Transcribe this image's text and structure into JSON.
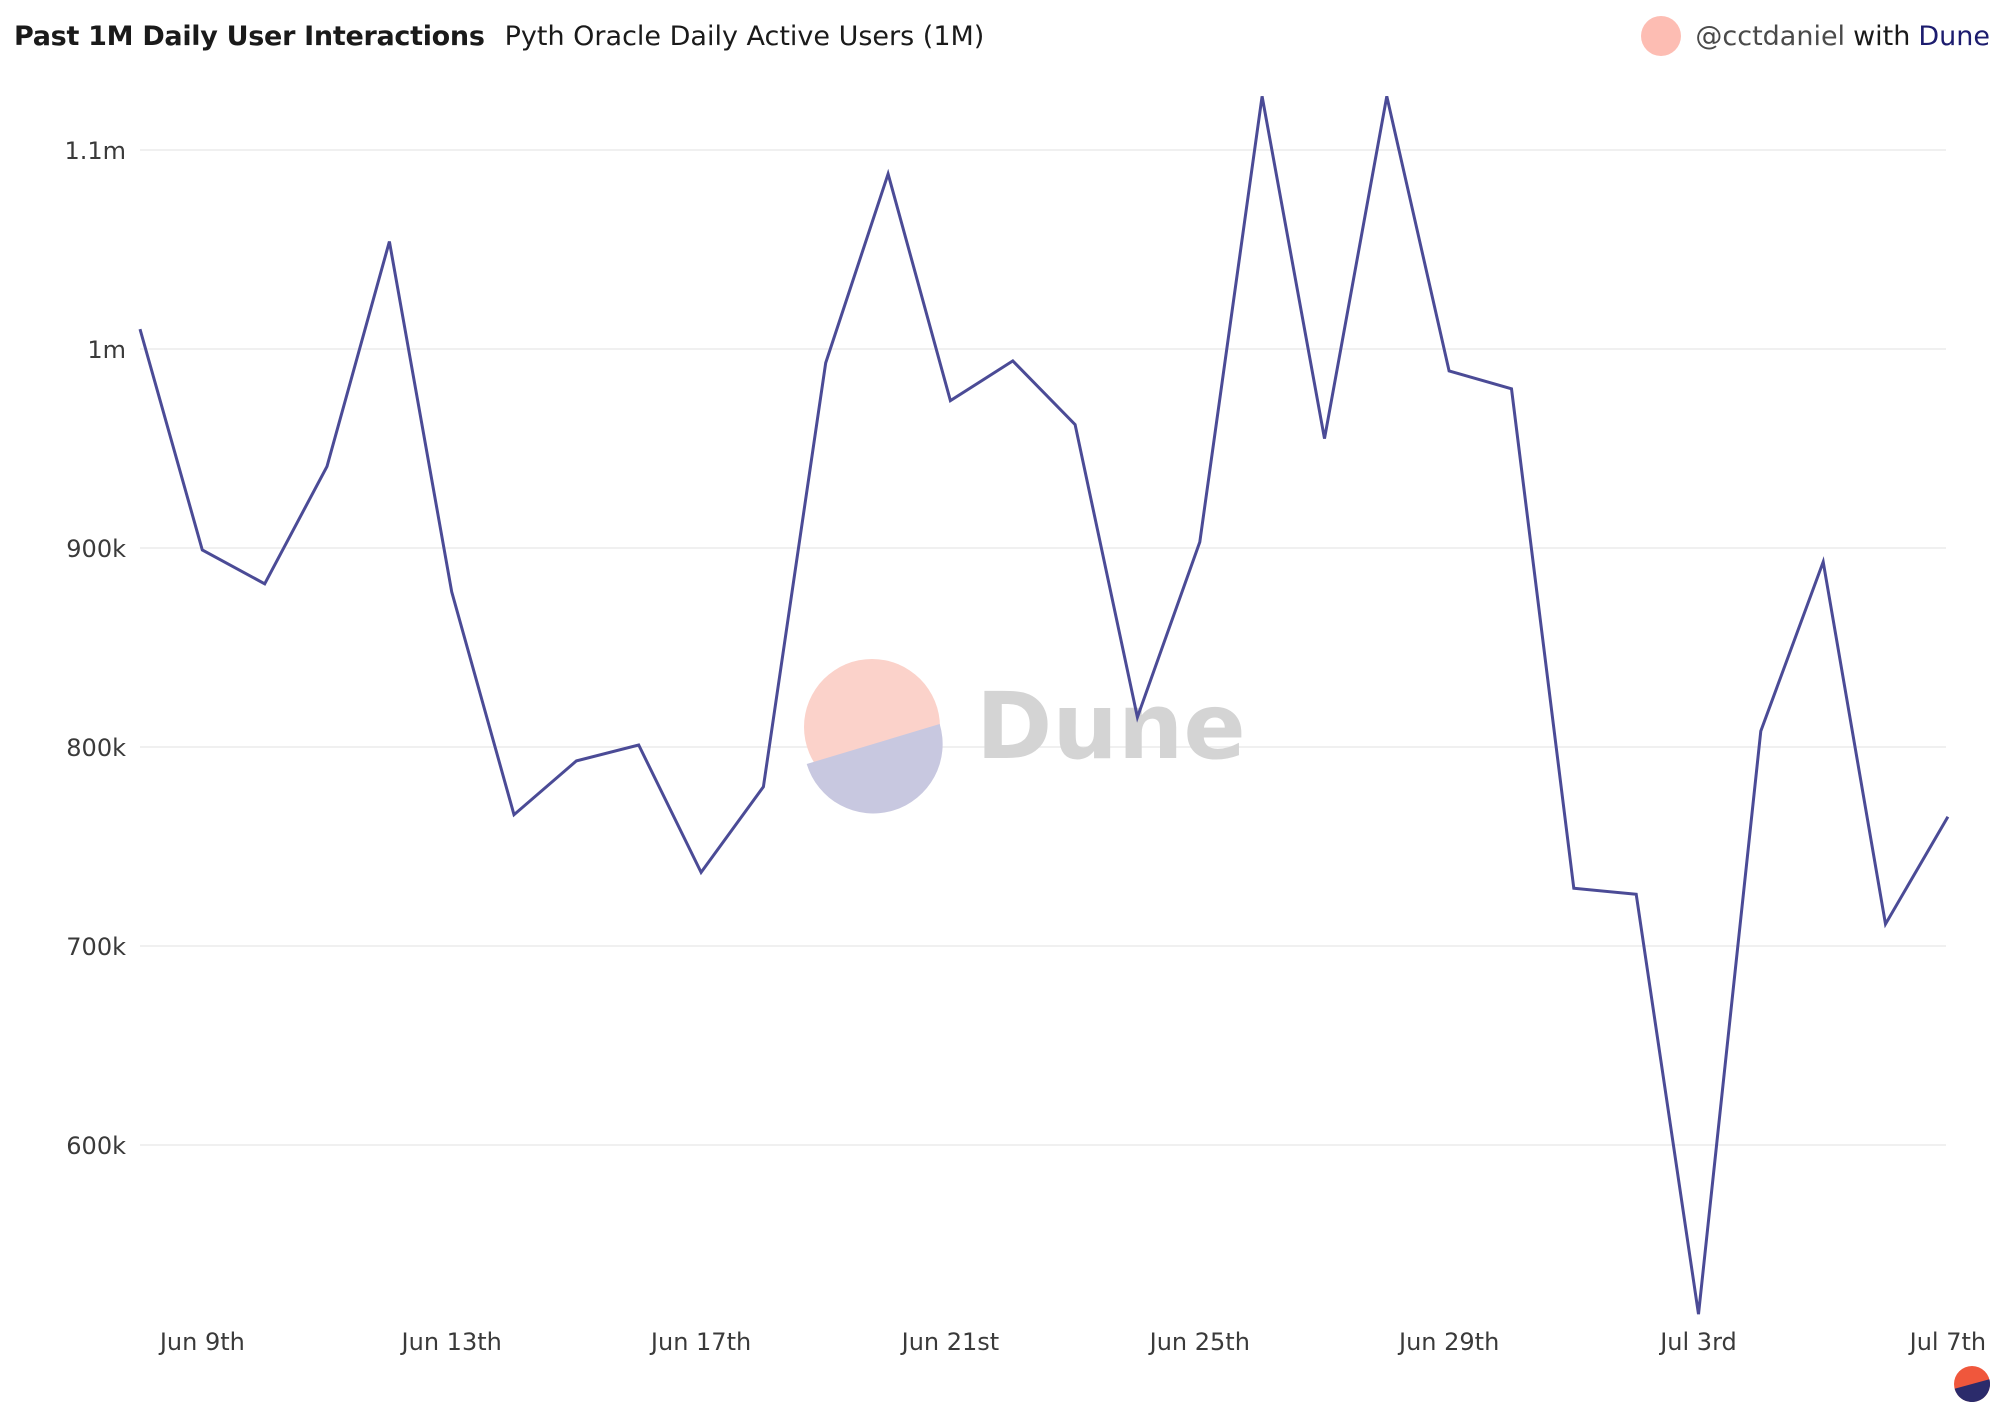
{
  "header": {
    "title": "Past 1M Daily User Interactions",
    "subtitle": "Pyth Oracle Daily Active Users (1M)"
  },
  "attribution": {
    "user": "@cctdaniel",
    "with": "with",
    "brand": "Dune",
    "avatar_color": "#fdbdb3"
  },
  "watermark": {
    "text": "Dune",
    "top_color": "#fbd2ca",
    "bottom_color": "#c8c8e0"
  },
  "colors": {
    "line": "#4b4b96",
    "grid": "#ebebeb",
    "axis_text": "#3a3a3a",
    "logo_top": "#f0573c",
    "logo_bottom": "#2b2b6b"
  },
  "chart_data": {
    "type": "line",
    "title": "Pyth Oracle Daily Active Users (1M)",
    "xlabel": "",
    "ylabel": "",
    "x": [
      "Jun 8th",
      "Jun 9th",
      "Jun 10th",
      "Jun 11th",
      "Jun 12th",
      "Jun 13th",
      "Jun 14th",
      "Jun 15th",
      "Jun 16th",
      "Jun 17th",
      "Jun 18th",
      "Jun 19th",
      "Jun 20th",
      "Jun 21st",
      "Jun 22nd",
      "Jun 23rd",
      "Jun 24th",
      "Jun 25th",
      "Jun 26th",
      "Jun 27th",
      "Jun 28th",
      "Jun 29th",
      "Jun 30th",
      "Jul 1st",
      "Jul 2nd",
      "Jul 3rd",
      "Jul 4th",
      "Jul 5th",
      "Jul 6th",
      "Jul 7th"
    ],
    "series": [
      {
        "values": [
          1010000,
          899000,
          882000,
          941000,
          1054000,
          878000,
          766000,
          793000,
          801000,
          737000,
          780000,
          993000,
          1088000,
          974000,
          994000,
          962000,
          815000,
          903000,
          1127000,
          955000,
          1127000,
          989000,
          980000,
          729000,
          726000,
          515000,
          808000,
          893000,
          711000,
          765000
        ]
      }
    ],
    "x_ticks": [
      "Jun 9th",
      "Jun 13th",
      "Jun 17th",
      "Jun 21st",
      "Jun 25th",
      "Jun 29th",
      "Jul 3rd",
      "Jul 7th"
    ],
    "y_ticks": [
      {
        "value": 600000,
        "label": "600k"
      },
      {
        "value": 700000,
        "label": "700k"
      },
      {
        "value": 800000,
        "label": "800k"
      },
      {
        "value": 900000,
        "label": "900k"
      },
      {
        "value": 1000000,
        "label": "1m"
      },
      {
        "value": 1100000,
        "label": "1.1m"
      }
    ],
    "ylim": [
      510000,
      1135000
    ],
    "grid": true,
    "legend": "none"
  }
}
